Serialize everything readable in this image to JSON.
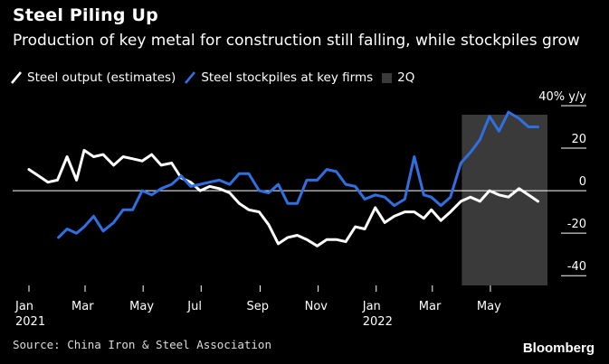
{
  "title": "Steel Piling Up",
  "subtitle": "Production of key metal for construction still falling, while stockpiles grow",
  "source": "Source: China Iron & Steel Association",
  "brand": "Bloomberg",
  "colors": {
    "background": "#000000",
    "output": "#ffffff",
    "stockpiles": "#2f6fe0",
    "shaded": "#3a3a3a",
    "text": "#ffffff"
  },
  "chart_data": {
    "type": "line",
    "legend_placement": "top-left",
    "legend": [
      "Steel output (estimates)",
      "Steel stockpiles at key firms",
      "2Q"
    ],
    "ylabel": "40% y/y",
    "ylim": [
      -45,
      40
    ],
    "yticks": [
      40,
      20,
      0,
      -20,
      -40
    ],
    "ytick_labels": [
      "40% y/y",
      "20",
      "0",
      "-20",
      "-40"
    ],
    "xlim": [
      "2021-01-01",
      "2022-06-30"
    ],
    "xticks": [
      {
        "date": "2021-01-01",
        "label": "Jan",
        "sublabel": "2021"
      },
      {
        "date": "2021-03-01",
        "label": "Mar",
        "sublabel": ""
      },
      {
        "date": "2021-05-01",
        "label": "May",
        "sublabel": ""
      },
      {
        "date": "2021-07-01",
        "label": "Jul",
        "sublabel": ""
      },
      {
        "date": "2021-09-01",
        "label": "Sep",
        "sublabel": ""
      },
      {
        "date": "2021-11-01",
        "label": "Nov",
        "sublabel": ""
      },
      {
        "date": "2022-01-01",
        "label": "Jan",
        "sublabel": "2022"
      },
      {
        "date": "2022-03-01",
        "label": "Mar",
        "sublabel": ""
      },
      {
        "date": "2022-05-01",
        "label": "May",
        "sublabel": ""
      }
    ],
    "shaded_region": {
      "label": "2Q",
      "start": "2022-04-01",
      "end": "2022-06-30"
    },
    "series": [
      {
        "name": "Steel output (estimates)",
        "color": "#ffffff",
        "points": [
          [
            "2021-01-01",
            10
          ],
          [
            "2021-01-11",
            7
          ],
          [
            "2021-01-21",
            4
          ],
          [
            "2021-01-31",
            5
          ],
          [
            "2021-02-10",
            16
          ],
          [
            "2021-02-20",
            5
          ],
          [
            "2021-02-28",
            19
          ],
          [
            "2021-03-10",
            16
          ],
          [
            "2021-03-20",
            17
          ],
          [
            "2021-03-31",
            12
          ],
          [
            "2021-04-10",
            16
          ],
          [
            "2021-04-20",
            15
          ],
          [
            "2021-04-30",
            14
          ],
          [
            "2021-05-10",
            17
          ],
          [
            "2021-05-20",
            12
          ],
          [
            "2021-05-31",
            13
          ],
          [
            "2021-06-10",
            6
          ],
          [
            "2021-06-20",
            4
          ],
          [
            "2021-06-30",
            0
          ],
          [
            "2021-07-10",
            2
          ],
          [
            "2021-07-20",
            1
          ],
          [
            "2021-07-31",
            -1
          ],
          [
            "2021-08-10",
            -6
          ],
          [
            "2021-08-20",
            -9
          ],
          [
            "2021-08-31",
            -10
          ],
          [
            "2021-09-10",
            -16
          ],
          [
            "2021-09-20",
            -25
          ],
          [
            "2021-09-30",
            -22
          ],
          [
            "2021-10-10",
            -21
          ],
          [
            "2021-10-20",
            -23
          ],
          [
            "2021-10-31",
            -26
          ],
          [
            "2021-11-10",
            -23
          ],
          [
            "2021-11-20",
            -23
          ],
          [
            "2021-11-30",
            -24
          ],
          [
            "2021-12-10",
            -17
          ],
          [
            "2021-12-20",
            -18
          ],
          [
            "2021-12-31",
            -8
          ],
          [
            "2022-01-10",
            -15
          ],
          [
            "2022-01-20",
            -12
          ],
          [
            "2022-01-31",
            -10
          ],
          [
            "2022-02-10",
            -10
          ],
          [
            "2022-02-20",
            -13
          ],
          [
            "2022-02-28",
            -9
          ],
          [
            "2022-03-10",
            -14
          ],
          [
            "2022-03-20",
            -10
          ],
          [
            "2022-03-31",
            -5
          ],
          [
            "2022-04-10",
            -3
          ],
          [
            "2022-04-20",
            -5
          ],
          [
            "2022-04-30",
            0
          ],
          [
            "2022-05-10",
            -2
          ],
          [
            "2022-05-20",
            -3
          ],
          [
            "2022-05-31",
            1
          ],
          [
            "2022-06-10",
            -2
          ],
          [
            "2022-06-20",
            -5
          ]
        ]
      },
      {
        "name": "Steel stockpiles at key firms",
        "color": "#2f6fe0",
        "points": [
          [
            "2021-02-01",
            -22
          ],
          [
            "2021-02-10",
            -18
          ],
          [
            "2021-02-20",
            -20
          ],
          [
            "2021-02-28",
            -17
          ],
          [
            "2021-03-10",
            -12
          ],
          [
            "2021-03-20",
            -19
          ],
          [
            "2021-03-31",
            -15
          ],
          [
            "2021-04-10",
            -9
          ],
          [
            "2021-04-20",
            -9
          ],
          [
            "2021-04-30",
            0
          ],
          [
            "2021-05-10",
            -2
          ],
          [
            "2021-05-20",
            1
          ],
          [
            "2021-05-31",
            3
          ],
          [
            "2021-06-10",
            7
          ],
          [
            "2021-06-20",
            2
          ],
          [
            "2021-06-30",
            3
          ],
          [
            "2021-07-10",
            4
          ],
          [
            "2021-07-20",
            5
          ],
          [
            "2021-07-31",
            3
          ],
          [
            "2021-08-10",
            8
          ],
          [
            "2021-08-20",
            8
          ],
          [
            "2021-08-31",
            0
          ],
          [
            "2021-09-10",
            -1
          ],
          [
            "2021-09-20",
            3
          ],
          [
            "2021-09-30",
            -6
          ],
          [
            "2021-10-10",
            -6
          ],
          [
            "2021-10-20",
            5
          ],
          [
            "2021-10-31",
            5
          ],
          [
            "2021-11-10",
            10
          ],
          [
            "2021-11-20",
            9
          ],
          [
            "2021-11-30",
            3
          ],
          [
            "2021-12-10",
            2
          ],
          [
            "2021-12-20",
            -4
          ],
          [
            "2021-12-31",
            -2
          ],
          [
            "2022-01-10",
            -3
          ],
          [
            "2022-01-20",
            -7
          ],
          [
            "2022-01-31",
            -4
          ],
          [
            "2022-02-10",
            16
          ],
          [
            "2022-02-20",
            -2
          ],
          [
            "2022-02-28",
            -3
          ],
          [
            "2022-03-10",
            -7
          ],
          [
            "2022-03-20",
            -3
          ],
          [
            "2022-03-31",
            13
          ],
          [
            "2022-04-10",
            18
          ],
          [
            "2022-04-20",
            24
          ],
          [
            "2022-04-30",
            35
          ],
          [
            "2022-05-10",
            28
          ],
          [
            "2022-05-20",
            37
          ],
          [
            "2022-05-31",
            34
          ],
          [
            "2022-06-10",
            30
          ],
          [
            "2022-06-20",
            30
          ]
        ]
      }
    ]
  }
}
